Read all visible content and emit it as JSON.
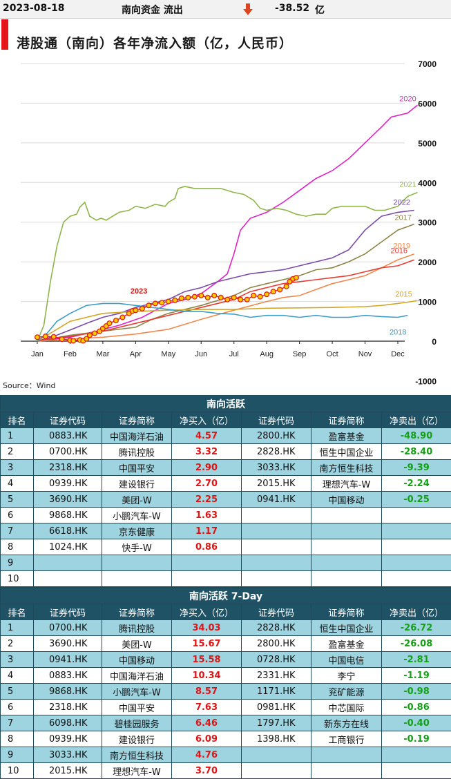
{
  "header": {
    "date": "2023-08-18",
    "flow_label": "南向资金 流出",
    "value": "-38.52",
    "unit": "亿"
  },
  "chart_title": "港股通（南向）各年净流入额（亿，人民币）",
  "source": "Source：Wind",
  "chart_data": {
    "type": "line",
    "title": "港股通（南向）各年净流入额（亿，人民币）",
    "x_labels": [
      "Jan",
      "Feb",
      "Mar",
      "Apr",
      "May",
      "Jun",
      "Jul",
      "Aug",
      "Sep",
      "Oct",
      "Nov",
      "Dec"
    ],
    "y_ticks": [
      "7000",
      "6000",
      "5000",
      "4000",
      "3000",
      "2000",
      "1000",
      "0",
      "-1000"
    ],
    "ylim": [
      -1000,
      7000
    ],
    "grid": "horizontal",
    "series": [
      {
        "name": "2020",
        "color": "#e020c8",
        "points": [
          [
            0,
            0
          ],
          [
            1,
            100
          ],
          [
            1.8,
            250
          ],
          [
            2.5,
            400
          ],
          [
            3.2,
            600
          ],
          [
            3.7,
            820
          ],
          [
            4,
            950
          ],
          [
            4.5,
            1050
          ],
          [
            5,
            1200
          ],
          [
            5.5,
            1500
          ],
          [
            5.8,
            1700
          ],
          [
            6,
            2200
          ],
          [
            6.2,
            2800
          ],
          [
            6.5,
            3100
          ],
          [
            7,
            3250
          ],
          [
            7.5,
            3500
          ],
          [
            8,
            3800
          ],
          [
            8.5,
            4100
          ],
          [
            9,
            4300
          ],
          [
            9.5,
            4600
          ],
          [
            10,
            5000
          ],
          [
            10.5,
            5400
          ],
          [
            10.8,
            5650
          ],
          [
            11.3,
            5750
          ],
          [
            11.6,
            5950
          ]
        ]
      },
      {
        "name": "2021",
        "color": "#8fb54a",
        "points": [
          [
            0,
            0
          ],
          [
            0.2,
            400
          ],
          [
            0.4,
            1500
          ],
          [
            0.6,
            2400
          ],
          [
            0.8,
            3000
          ],
          [
            1,
            3150
          ],
          [
            1.2,
            3200
          ],
          [
            1.3,
            3380
          ],
          [
            1.45,
            3500
          ],
          [
            1.6,
            3150
          ],
          [
            1.8,
            3050
          ],
          [
            1.95,
            3100
          ],
          [
            2.1,
            3050
          ],
          [
            2.3,
            3150
          ],
          [
            2.5,
            3250
          ],
          [
            2.8,
            3300
          ],
          [
            3,
            3400
          ],
          [
            3.3,
            3350
          ],
          [
            3.6,
            3450
          ],
          [
            3.9,
            3400
          ],
          [
            4,
            3500
          ],
          [
            4.2,
            3600
          ],
          [
            4.3,
            3850
          ],
          [
            4.5,
            3900
          ],
          [
            4.8,
            3850
          ],
          [
            5.2,
            3850
          ],
          [
            5.6,
            3850
          ],
          [
            6,
            3750
          ],
          [
            6.3,
            3700
          ],
          [
            6.6,
            3550
          ],
          [
            6.8,
            3350
          ],
          [
            7,
            3300
          ],
          [
            7.3,
            3350
          ],
          [
            7.6,
            3300
          ],
          [
            7.9,
            3200
          ],
          [
            8.2,
            3150
          ],
          [
            8.5,
            3200
          ],
          [
            8.8,
            3200
          ],
          [
            9,
            3350
          ],
          [
            9.3,
            3400
          ],
          [
            9.6,
            3400
          ],
          [
            10,
            3400
          ],
          [
            10.3,
            3300
          ],
          [
            10.6,
            3300
          ],
          [
            11,
            3400
          ],
          [
            11.3,
            3650
          ],
          [
            11.6,
            3750
          ]
        ]
      },
      {
        "name": "2022",
        "color": "#7a4aa8",
        "points": [
          [
            0,
            0
          ],
          [
            0.5,
            120
          ],
          [
            1,
            280
          ],
          [
            1.5,
            450
          ],
          [
            2,
            600
          ],
          [
            2.5,
            700
          ],
          [
            3,
            850
          ],
          [
            3.5,
            950
          ],
          [
            4,
            1050
          ],
          [
            4.5,
            1250
          ],
          [
            5,
            1350
          ],
          [
            5.5,
            1500
          ],
          [
            6,
            1600
          ],
          [
            6.5,
            1700
          ],
          [
            7,
            1750
          ],
          [
            7.5,
            1800
          ],
          [
            8,
            1900
          ],
          [
            8.5,
            2000
          ],
          [
            9,
            2100
          ],
          [
            9.5,
            2300
          ],
          [
            10,
            2800
          ],
          [
            10.5,
            3150
          ],
          [
            11,
            3250
          ],
          [
            11.5,
            3300
          ]
        ]
      },
      {
        "name": "2017",
        "color": "#8e8448",
        "points": [
          [
            0,
            0
          ],
          [
            1,
            150
          ],
          [
            2,
            250
          ],
          [
            3,
            350
          ],
          [
            3.5,
            550
          ],
          [
            4,
            700
          ],
          [
            5,
            900
          ],
          [
            6,
            1150
          ],
          [
            6.5,
            1350
          ],
          [
            7,
            1450
          ],
          [
            7.5,
            1550
          ],
          [
            8,
            1650
          ],
          [
            8.5,
            1800
          ],
          [
            9,
            1850
          ],
          [
            9.5,
            2000
          ],
          [
            10,
            2200
          ],
          [
            10.5,
            2500
          ],
          [
            11,
            2800
          ],
          [
            11.5,
            2950
          ]
        ]
      },
      {
        "name": "2019",
        "color": "#f2884c",
        "points": [
          [
            0,
            0
          ],
          [
            1,
            50
          ],
          [
            2,
            100
          ],
          [
            3,
            180
          ],
          [
            4,
            300
          ],
          [
            5,
            550
          ],
          [
            6,
            780
          ],
          [
            7,
            1000
          ],
          [
            7.5,
            1100
          ],
          [
            8,
            1150
          ],
          [
            8.5,
            1300
          ],
          [
            9,
            1450
          ],
          [
            9.5,
            1550
          ],
          [
            10,
            1650
          ],
          [
            10.5,
            1850
          ],
          [
            11,
            2050
          ],
          [
            11.5,
            2200
          ]
        ]
      },
      {
        "name": "2016",
        "color": "#e63c32",
        "points": [
          [
            0,
            0
          ],
          [
            0.5,
            80
          ],
          [
            1,
            120
          ],
          [
            2,
            250
          ],
          [
            2.5,
            350
          ],
          [
            3,
            450
          ],
          [
            4,
            650
          ],
          [
            5,
            850
          ],
          [
            6,
            1050
          ],
          [
            6.5,
            1250
          ],
          [
            7,
            1350
          ],
          [
            7.5,
            1450
          ],
          [
            8,
            1500
          ],
          [
            8.5,
            1550
          ],
          [
            9,
            1600
          ],
          [
            9.5,
            1650
          ],
          [
            10,
            1750
          ],
          [
            10.5,
            1850
          ],
          [
            11,
            1900
          ],
          [
            11.5,
            2050
          ]
        ]
      },
      {
        "name": "2015",
        "color": "#d4a628",
        "points": [
          [
            0,
            0
          ],
          [
            1,
            500
          ],
          [
            1.5,
            600
          ],
          [
            2,
            700
          ],
          [
            3,
            750
          ],
          [
            4,
            780
          ],
          [
            5,
            800
          ],
          [
            6,
            800
          ],
          [
            7,
            830
          ],
          [
            8,
            840
          ],
          [
            9,
            850
          ],
          [
            10,
            870
          ],
          [
            10.5,
            900
          ],
          [
            11,
            950
          ],
          [
            11.6,
            1020
          ]
        ]
      },
      {
        "name": "2018",
        "color": "#3c9ec8",
        "points": [
          [
            0,
            0
          ],
          [
            0.3,
            200
          ],
          [
            0.6,
            500
          ],
          [
            1,
            700
          ],
          [
            1.5,
            900
          ],
          [
            2,
            950
          ],
          [
            2.5,
            950
          ],
          [
            3,
            900
          ],
          [
            3.5,
            850
          ],
          [
            4,
            800
          ],
          [
            4.5,
            750
          ],
          [
            5,
            750
          ],
          [
            5.5,
            700
          ],
          [
            6,
            680
          ],
          [
            6.5,
            600
          ],
          [
            7,
            650
          ],
          [
            7.5,
            650
          ],
          [
            8,
            600
          ],
          [
            8.5,
            650
          ],
          [
            9,
            600
          ],
          [
            9.5,
            600
          ],
          [
            10,
            650
          ],
          [
            10.5,
            620
          ],
          [
            11,
            600
          ],
          [
            11.3,
            650
          ]
        ]
      },
      {
        "name": "2023",
        "color": "#ff9a00",
        "points": [
          [
            0,
            100
          ],
          [
            0.25,
            120
          ],
          [
            0.5,
            110
          ],
          [
            0.75,
            50
          ],
          [
            1,
            20
          ],
          [
            1.1,
            10
          ],
          [
            1.3,
            30
          ],
          [
            1.4,
            10
          ],
          [
            1.5,
            60
          ],
          [
            1.6,
            150
          ],
          [
            1.75,
            200
          ],
          [
            1.9,
            250
          ],
          [
            2,
            320
          ],
          [
            2.1,
            380
          ],
          [
            2.2,
            450
          ],
          [
            2.4,
            520
          ],
          [
            2.6,
            600
          ],
          [
            2.8,
            700
          ],
          [
            2.9,
            760
          ],
          [
            3,
            780
          ],
          [
            3.2,
            820
          ],
          [
            3.4,
            900
          ],
          [
            3.6,
            950
          ],
          [
            3.8,
            970
          ],
          [
            4,
            1000
          ],
          [
            4.2,
            1030
          ],
          [
            4.4,
            1080
          ],
          [
            4.6,
            1100
          ],
          [
            4.8,
            1120
          ],
          [
            5,
            1150
          ],
          [
            5.2,
            1100
          ],
          [
            5.4,
            1150
          ],
          [
            5.6,
            1100
          ],
          [
            5.8,
            1050
          ],
          [
            6,
            1100
          ],
          [
            6.2,
            1050
          ],
          [
            6.4,
            1050
          ],
          [
            6.6,
            1150
          ],
          [
            6.8,
            1120
          ],
          [
            7,
            1180
          ],
          [
            7.2,
            1250
          ],
          [
            7.4,
            1300
          ],
          [
            7.6,
            1380
          ],
          [
            7.7,
            1500
          ],
          [
            7.8,
            1570
          ],
          [
            7.9,
            1600
          ]
        ]
      }
    ]
  },
  "table1": {
    "title": "南向活跃",
    "headers": [
      "排名",
      "证券代码",
      "证券简称",
      "净买入（亿）",
      "证券代码",
      "证券简称",
      "净卖出（亿）"
    ],
    "rows": [
      [
        "1",
        "0883.HK",
        "中国海洋石油",
        "4.57",
        "2800.HK",
        "盈富基金",
        "-48.90"
      ],
      [
        "2",
        "0700.HK",
        "腾讯控股",
        "3.32",
        "2828.HK",
        "恒生中国企业",
        "-28.40"
      ],
      [
        "3",
        "2318.HK",
        "中国平安",
        "2.90",
        "3033.HK",
        "南方恒生科技",
        "-9.39"
      ],
      [
        "4",
        "0939.HK",
        "建设银行",
        "2.70",
        "2015.HK",
        "理想汽车-W",
        "-2.24"
      ],
      [
        "5",
        "3690.HK",
        "美团-W",
        "2.25",
        "0941.HK",
        "中国移动",
        "-0.25"
      ],
      [
        "6",
        "9868.HK",
        "小鹏汽车-W",
        "1.63",
        "",
        "",
        ""
      ],
      [
        "7",
        "6618.HK",
        "京东健康",
        "1.17",
        "",
        "",
        ""
      ],
      [
        "8",
        "1024.HK",
        "快手-W",
        "0.86",
        "",
        "",
        ""
      ],
      [
        "9",
        "",
        "",
        "",
        "",
        "",
        ""
      ],
      [
        "10",
        "",
        "",
        "",
        "",
        "",
        ""
      ]
    ]
  },
  "table2": {
    "title": "南向活跃 7-Day",
    "headers": [
      "排名",
      "证券代码",
      "证券简称",
      "净买入（亿）",
      "证券代码",
      "证券简称",
      "净卖出（亿）"
    ],
    "rows": [
      [
        "1",
        "0700.HK",
        "腾讯控股",
        "34.03",
        "2828.HK",
        "恒生中国企业",
        "-26.72"
      ],
      [
        "2",
        "3690.HK",
        "美团-W",
        "15.67",
        "2800.HK",
        "盈富基金",
        "-26.08"
      ],
      [
        "3",
        "0941.HK",
        "中国移动",
        "15.58",
        "0728.HK",
        "中国电信",
        "-2.81"
      ],
      [
        "4",
        "0883.HK",
        "中国海洋石油",
        "10.34",
        "2331.HK",
        "李宁",
        "-1.19"
      ],
      [
        "5",
        "9868.HK",
        "小鹏汽车-W",
        "8.57",
        "1171.HK",
        "兖矿能源",
        "-0.98"
      ],
      [
        "6",
        "2318.HK",
        "中国平安",
        "7.63",
        "0981.HK",
        "中芯国际",
        "-0.86"
      ],
      [
        "7",
        "6098.HK",
        "碧桂园服务",
        "6.46",
        "1797.HK",
        "新东方在线",
        "-0.40"
      ],
      [
        "8",
        "0939.HK",
        "建设银行",
        "6.09",
        "1398.HK",
        "工商银行",
        "-0.19"
      ],
      [
        "9",
        "3033.HK",
        "南方恒生科技",
        "4.76",
        "",
        "",
        ""
      ],
      [
        "10",
        "2015.HK",
        "理想汽车-W",
        "3.70",
        "",
        "",
        ""
      ]
    ]
  }
}
